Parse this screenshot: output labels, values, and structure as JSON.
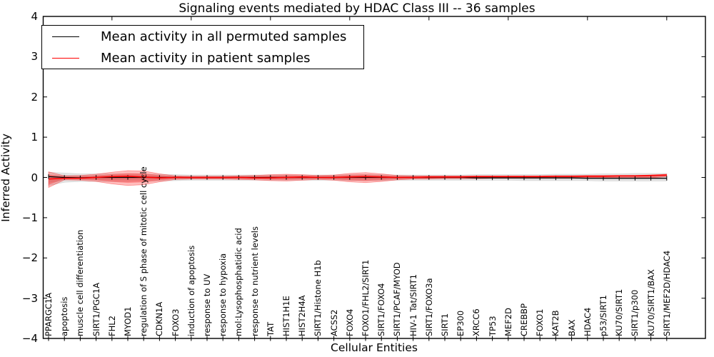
{
  "figure": {
    "title": "Signaling events mediated by HDAC Class III -- 36 samples",
    "xlabel": "Cellular Entities",
    "ylabel": "Inferred Activity"
  },
  "legend": {
    "items": [
      {
        "label": "Mean activity in all permuted samples",
        "color": "#000000"
      },
      {
        "label": "Mean activity in patient samples",
        "color": "#ff0000"
      }
    ]
  },
  "chart_data": {
    "type": "line",
    "title": "Signaling events mediated by HDAC Class III -- 36 samples",
    "xlabel": "Cellular Entities",
    "ylabel": "Inferred Activity",
    "ylim": [
      -4,
      4
    ],
    "yticks": [
      4,
      3,
      2,
      1,
      0,
      -1,
      -2,
      -3,
      -4
    ],
    "grid": false,
    "legend_position": "upper left",
    "categories": [
      "PPARGC1A",
      "apoptosis",
      "muscle cell differentiation",
      "SIRT1/PGC1A",
      "FHL2",
      "MYOD1",
      "regulation of S phase of mitotic cell cycle",
      "CDKN1A",
      "FOXO3",
      "induction of apoptosis",
      "response to UV",
      "response to hypoxia",
      "mol:Lysophosphatidic acid",
      "response to nutrient levels",
      "TAT",
      "HIST1H1E",
      "HIST2H4A",
      "SIRT1/Histone H1b",
      "ACSS2",
      "FOXO4",
      "FOXO1/FHL2/SIRT1",
      "SIRT1/FOXO4",
      "SIRT1/PCAF/MYOD",
      "HIV-1 Tat/SIRT1",
      "SIRT1/FOXO3a",
      "SIRT1",
      "EP300",
      "XRCC6",
      "TP53",
      "MEF2D",
      "CREBBP",
      "FOXO1",
      "KAT2B",
      "BAX",
      "HDAC4",
      "p53/SIRT1",
      "KU70/SIRT1",
      "SIRT1/p300",
      "KU70/SIRT1/BAX",
      "SIRT1/MEF2D/HDAC4"
    ],
    "series": [
      {
        "name": "Mean activity in all permuted samples",
        "color": "#000000",
        "values": [
          0.02,
          0,
          -0.01,
          0,
          0,
          0,
          0,
          0,
          0,
          0,
          0,
          0,
          0,
          0,
          0,
          0,
          0,
          0,
          0,
          0,
          0,
          0,
          0,
          0,
          0,
          0,
          0,
          -0.01,
          -0.01,
          -0.01,
          -0.01,
          -0.01,
          -0.01,
          -0.01,
          -0.02,
          -0.02,
          -0.02,
          -0.02,
          -0.02,
          -0.02
        ]
      },
      {
        "name": "Mean activity in patient samples",
        "color": "#ff0000",
        "values": [
          -0.04,
          -0.02,
          -0.02,
          0,
          0.02,
          0.03,
          0.01,
          -0.01,
          0,
          0,
          0,
          0,
          0,
          -0.01,
          -0.01,
          0,
          0.01,
          0,
          0,
          0.01,
          0.02,
          0.01,
          0,
          0,
          0.01,
          0.01,
          0.01,
          0.02,
          0.02,
          0.02,
          0.02,
          0.02,
          0.03,
          0.03,
          0.03,
          0.03,
          0.04,
          0.04,
          0.05,
          0.06
        ]
      }
    ],
    "bands": [
      {
        "name": "permuted samples range",
        "color": "#808080",
        "upper": [
          0.13,
          0.11,
          0.09,
          0.09,
          0.09,
          0.09,
          0.08,
          0.08,
          0.07,
          0.06,
          0.06,
          0.06,
          0.06,
          0.06,
          0.06,
          0.06,
          0.06,
          0.06,
          0.06,
          0.07,
          0.07,
          0.07,
          0.06,
          0.06,
          0.06,
          0.06,
          0.06,
          0.07,
          0.07,
          0.07,
          0.07,
          0.07,
          0.08,
          0.08,
          0.08,
          0.09,
          0.09,
          0.1,
          0.1,
          0.1
        ],
        "lower": [
          -0.2,
          -0.12,
          -0.1,
          -0.1,
          -0.1,
          -0.1,
          -0.09,
          -0.09,
          -0.08,
          -0.07,
          -0.07,
          -0.07,
          -0.07,
          -0.07,
          -0.07,
          -0.07,
          -0.07,
          -0.07,
          -0.07,
          -0.08,
          -0.08,
          -0.08,
          -0.07,
          -0.07,
          -0.07,
          -0.07,
          -0.07,
          -0.07,
          -0.07,
          -0.07,
          -0.08,
          -0.08,
          -0.08,
          -0.08,
          -0.08,
          -0.09,
          -0.09,
          -0.09,
          -0.09,
          -0.09
        ]
      },
      {
        "name": "patient samples range",
        "color": "#ff0000",
        "upper": [
          0.14,
          0.04,
          0.05,
          0.08,
          0.13,
          0.17,
          0.16,
          0.09,
          0.04,
          0.03,
          0.03,
          0.03,
          0.04,
          0.05,
          0.07,
          0.08,
          0.07,
          0.05,
          0.06,
          0.1,
          0.12,
          0.09,
          0.05,
          0.04,
          0.04,
          0.04,
          0.04,
          0.04,
          0.04,
          0.04,
          0.04,
          0.04,
          0.04,
          0.04,
          0.05,
          0.05,
          0.05,
          0.05,
          0.06,
          0.08
        ],
        "lower": [
          -0.25,
          -0.06,
          -0.07,
          -0.1,
          -0.16,
          -0.2,
          -0.18,
          -0.11,
          -0.05,
          -0.04,
          -0.04,
          -0.04,
          -0.05,
          -0.06,
          -0.08,
          -0.09,
          -0.07,
          -0.05,
          -0.07,
          -0.11,
          -0.13,
          -0.1,
          -0.06,
          -0.04,
          -0.04,
          -0.03,
          -0.03,
          -0.03,
          -0.02,
          -0.02,
          -0.02,
          -0.02,
          -0.02,
          -0.02,
          -0.02,
          -0.02,
          -0.02,
          -0.01,
          -0.01,
          0.02
        ]
      }
    ]
  }
}
